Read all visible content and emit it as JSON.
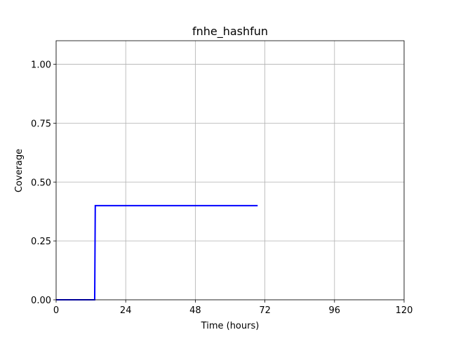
{
  "chart_data": {
    "type": "line",
    "title": "fnhe_hashfun",
    "xlabel": "Time (hours)",
    "ylabel": "Coverage",
    "xlim": [
      0,
      120
    ],
    "ylim": [
      0,
      1.1
    ],
    "xticks": [
      0,
      24,
      48,
      72,
      96,
      120
    ],
    "xtick_labels": [
      "0",
      "24",
      "48",
      "72",
      "96",
      "120"
    ],
    "yticks": [
      0,
      0.25,
      0.5,
      0.75,
      1.0
    ],
    "ytick_labels": [
      "0.00",
      "0.25",
      "0.50",
      "0.75",
      "1.00"
    ],
    "grid": true,
    "series": [
      {
        "color": "#0000ff",
        "x": [
          0,
          13.3,
          13.5,
          69.5
        ],
        "y": [
          0,
          0,
          0.4,
          0.4
        ]
      }
    ]
  }
}
